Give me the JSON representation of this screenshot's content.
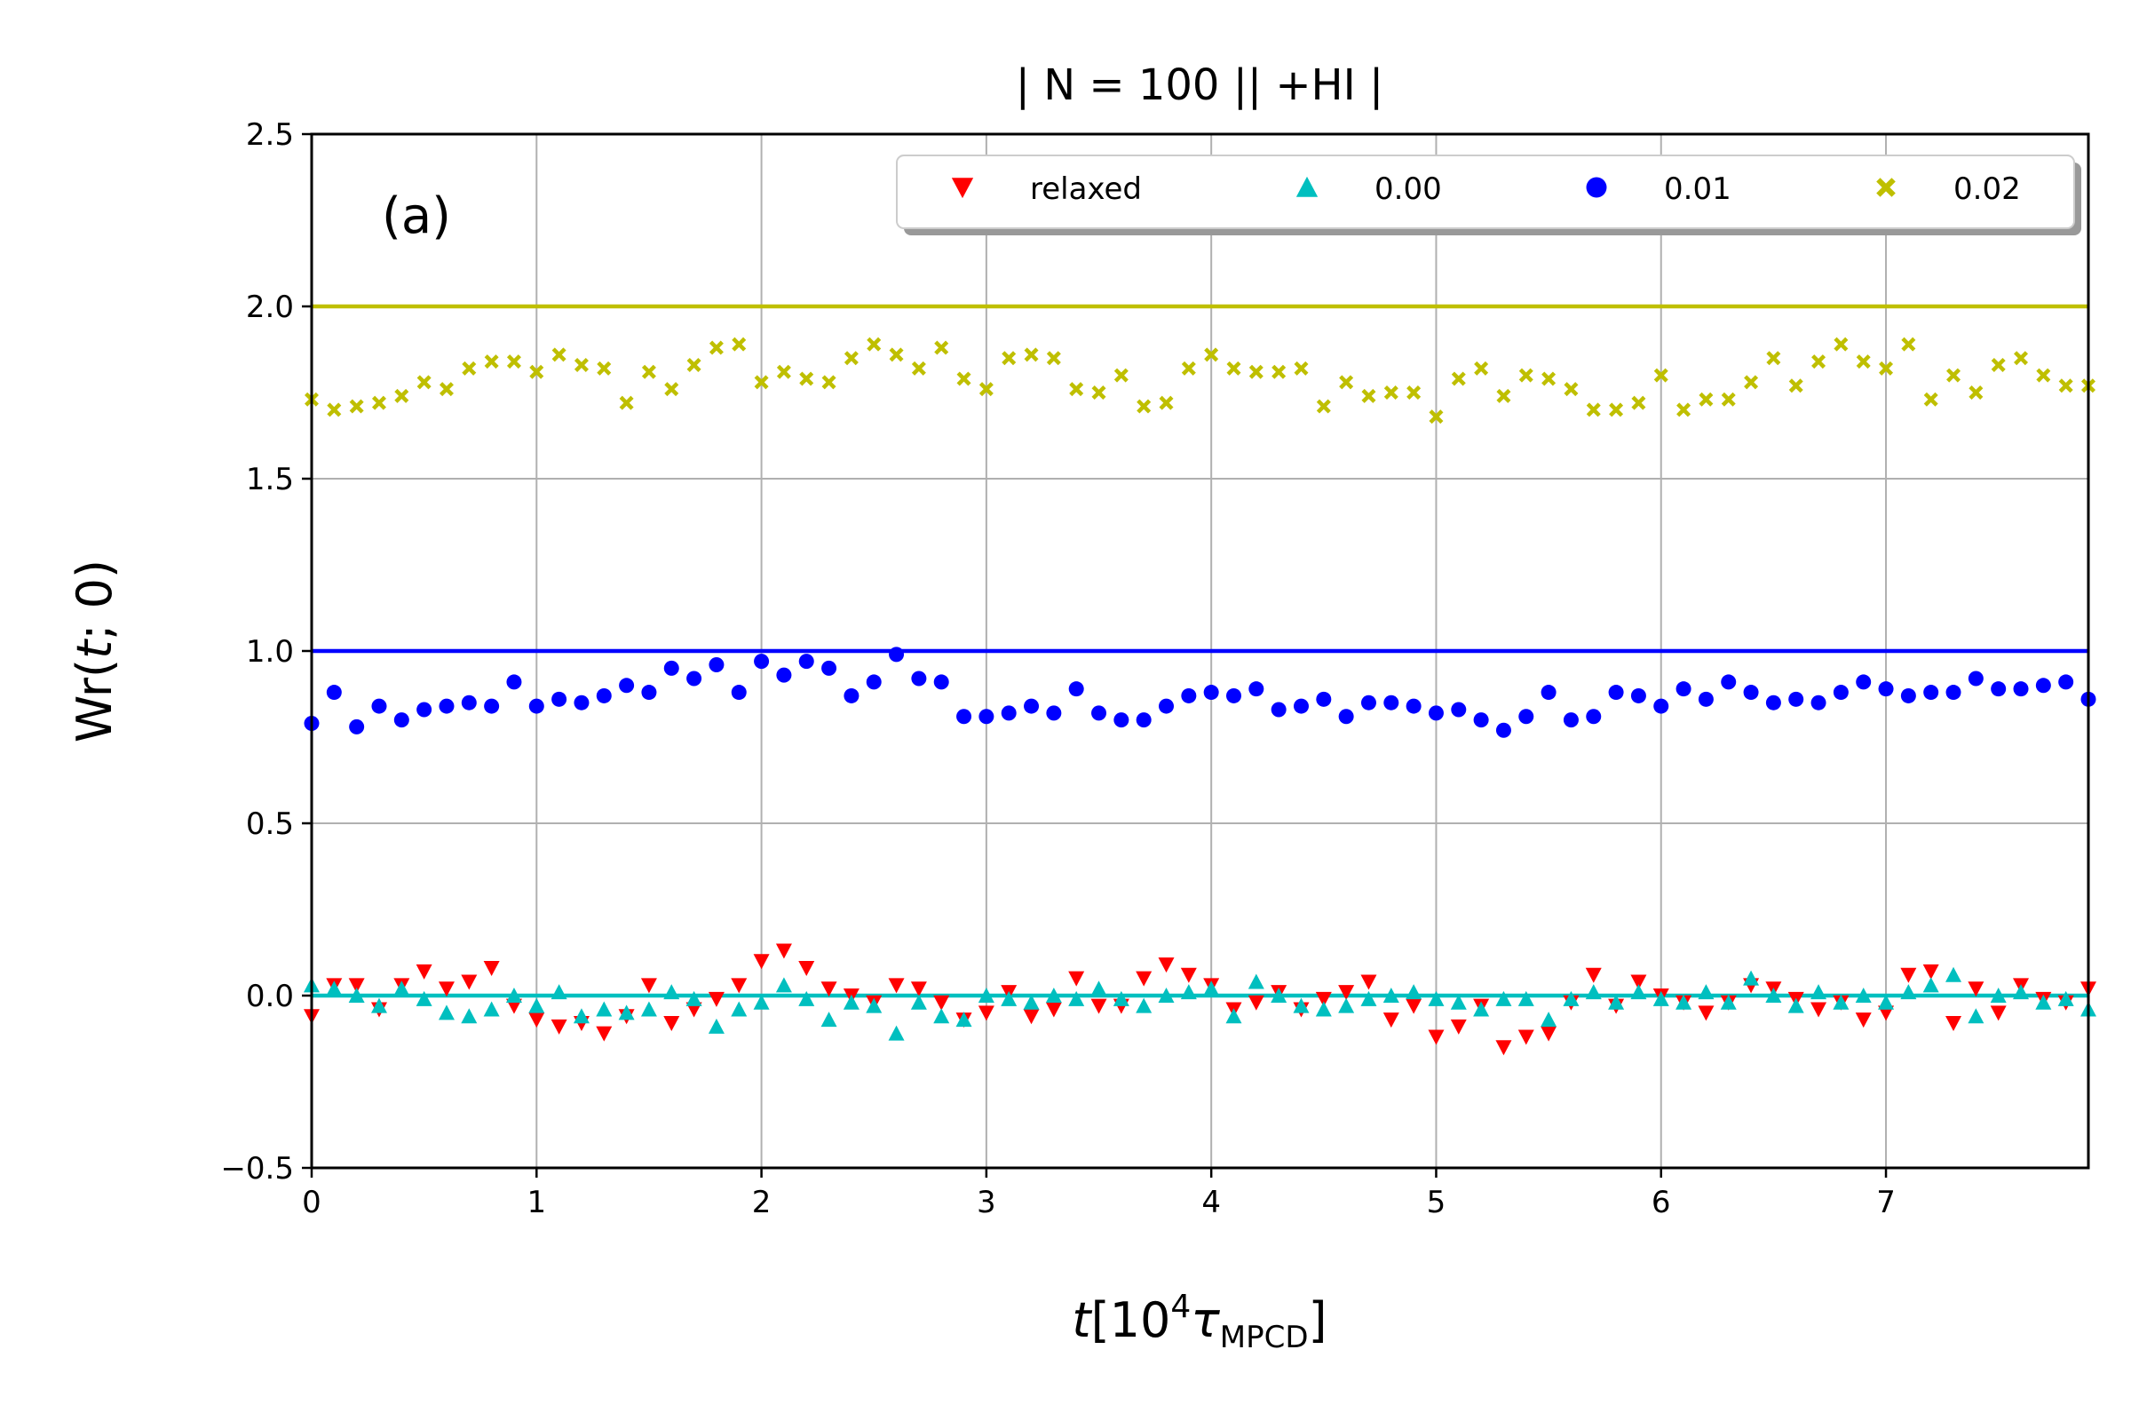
{
  "chart_data": {
    "type": "scatter",
    "title": "| N = 100 || +HI |",
    "panel_label": "(a)",
    "xlabel_var": "t",
    "xlabel_rest": "[10",
    "xlabel_exp": "4",
    "xlabel_tau": "τ",
    "xlabel_sub": "MPCD",
    "xlabel_close": "]",
    "ylabel_main": "Wr(",
    "ylabel_var": "t",
    "ylabel_rest": "; 0)",
    "xlim": [
      0,
      7.9
    ],
    "ylim": [
      -0.5,
      2.5
    ],
    "grid": true,
    "legend_position": "top-right",
    "xticks": [
      0,
      1,
      2,
      3,
      4,
      5,
      6,
      7
    ],
    "xtick_labels": [
      "0",
      "1",
      "2",
      "3",
      "4",
      "5",
      "6",
      "7"
    ],
    "yticks": [
      -0.5,
      0.0,
      0.5,
      1.0,
      1.5,
      2.0,
      2.5
    ],
    "ytick_labels": [
      "−0.5",
      "0.0",
      "0.5",
      "1.0",
      "1.5",
      "2.0",
      "2.5"
    ],
    "x": [
      0,
      0.1,
      0.2,
      0.3,
      0.4,
      0.5,
      0.6,
      0.7,
      0.8,
      0.9,
      1.0,
      1.1,
      1.2,
      1.3,
      1.4,
      1.5,
      1.6,
      1.7,
      1.8,
      1.9,
      2.0,
      2.1,
      2.2,
      2.3,
      2.4,
      2.5,
      2.6,
      2.7,
      2.8,
      2.9,
      3.0,
      3.1,
      3.2,
      3.3,
      3.4,
      3.5,
      3.6,
      3.7,
      3.8,
      3.9,
      4.0,
      4.1,
      4.2,
      4.3,
      4.4,
      4.5,
      4.6,
      4.7,
      4.8,
      4.9,
      5.0,
      5.1,
      5.2,
      5.3,
      5.4,
      5.5,
      5.6,
      5.7,
      5.8,
      5.9,
      6.0,
      6.1,
      6.2,
      6.3,
      6.4,
      6.5,
      6.6,
      6.7,
      6.8,
      6.9,
      7.0,
      7.1,
      7.2,
      7.3,
      7.4,
      7.5,
      7.6,
      7.7,
      7.8,
      7.9
    ],
    "series": [
      {
        "name": "relaxed",
        "marker": "triangle-down",
        "color": "#ff0000",
        "values": [
          -0.06,
          0.03,
          0.03,
          -0.04,
          0.03,
          0.07,
          0.02,
          0.04,
          0.08,
          -0.03,
          -0.07,
          -0.09,
          -0.08,
          -0.11,
          -0.06,
          0.03,
          -0.08,
          -0.04,
          -0.01,
          0.03,
          0.1,
          0.13,
          0.08,
          0.02,
          0.0,
          -0.02,
          0.03,
          0.02,
          -0.02,
          -0.07,
          -0.05,
          0.01,
          -0.06,
          -0.04,
          0.05,
          -0.03,
          -0.03,
          0.05,
          0.09,
          0.06,
          0.03,
          -0.04,
          -0.02,
          0.01,
          -0.04,
          -0.01,
          0.01,
          0.04,
          -0.07,
          -0.03,
          -0.12,
          -0.09,
          -0.03,
          -0.15,
          -0.12,
          -0.11,
          -0.02,
          0.06,
          -0.03,
          0.04,
          0.0,
          -0.02,
          -0.05,
          -0.02,
          0.03,
          0.02,
          -0.01,
          -0.04,
          -0.02,
          -0.07,
          -0.05,
          0.06,
          0.07,
          -0.08,
          0.02,
          -0.05,
          0.03,
          -0.01,
          -0.02,
          0.02
        ]
      },
      {
        "name": "0.00",
        "marker": "triangle-up",
        "color": "#00bfbf",
        "values": [
          0.03,
          0.02,
          0.0,
          -0.03,
          0.02,
          -0.01,
          -0.05,
          -0.06,
          -0.04,
          0.0,
          -0.03,
          0.01,
          -0.06,
          -0.04,
          -0.05,
          -0.04,
          0.01,
          -0.01,
          -0.09,
          -0.04,
          -0.02,
          0.03,
          -0.01,
          -0.07,
          -0.02,
          -0.03,
          -0.11,
          -0.02,
          -0.06,
          -0.07,
          0.0,
          -0.01,
          -0.02,
          0.0,
          -0.01,
          0.02,
          -0.01,
          -0.03,
          0.0,
          0.01,
          0.02,
          -0.06,
          0.04,
          0.0,
          -0.03,
          -0.04,
          -0.03,
          -0.01,
          0.0,
          0.01,
          -0.01,
          -0.02,
          -0.04,
          -0.01,
          -0.01,
          -0.07,
          -0.01,
          0.01,
          -0.02,
          0.01,
          -0.01,
          -0.02,
          0.01,
          -0.02,
          0.05,
          0.0,
          -0.03,
          0.01,
          -0.02,
          0.0,
          -0.02,
          0.01,
          0.03,
          0.06,
          -0.06,
          0.0,
          0.01,
          -0.02,
          -0.01,
          -0.04
        ]
      },
      {
        "name": "0.01",
        "marker": "circle",
        "color": "#0000ff",
        "values": [
          0.79,
          0.88,
          0.78,
          0.84,
          0.8,
          0.83,
          0.84,
          0.85,
          0.84,
          0.91,
          0.84,
          0.86,
          0.85,
          0.87,
          0.9,
          0.88,
          0.95,
          0.92,
          0.96,
          0.88,
          0.97,
          0.93,
          0.97,
          0.95,
          0.87,
          0.91,
          0.99,
          0.92,
          0.91,
          0.81,
          0.81,
          0.82,
          0.84,
          0.82,
          0.89,
          0.82,
          0.8,
          0.8,
          0.84,
          0.87,
          0.88,
          0.87,
          0.89,
          0.83,
          0.84,
          0.86,
          0.81,
          0.85,
          0.85,
          0.84,
          0.82,
          0.83,
          0.8,
          0.77,
          0.81,
          0.88,
          0.8,
          0.81,
          0.88,
          0.87,
          0.84,
          0.89,
          0.86,
          0.91,
          0.88,
          0.85,
          0.86,
          0.85,
          0.88,
          0.91,
          0.89,
          0.87,
          0.88,
          0.88,
          0.92,
          0.89,
          0.89,
          0.9,
          0.91,
          0.86
        ]
      },
      {
        "name": "0.02",
        "marker": "x-filled",
        "color": "#bfbf00",
        "values": [
          1.73,
          1.7,
          1.71,
          1.72,
          1.74,
          1.78,
          1.76,
          1.82,
          1.84,
          1.84,
          1.81,
          1.86,
          1.83,
          1.82,
          1.72,
          1.81,
          1.76,
          1.83,
          1.88,
          1.89,
          1.78,
          1.81,
          1.79,
          1.78,
          1.85,
          1.89,
          1.86,
          1.82,
          1.88,
          1.79,
          1.76,
          1.85,
          1.86,
          1.85,
          1.76,
          1.75,
          1.8,
          1.71,
          1.72,
          1.82,
          1.86,
          1.82,
          1.81,
          1.81,
          1.82,
          1.71,
          1.78,
          1.74,
          1.75,
          1.75,
          1.68,
          1.79,
          1.82,
          1.74,
          1.8,
          1.79,
          1.76,
          1.7,
          1.7,
          1.72,
          1.8,
          1.7,
          1.73,
          1.73,
          1.78,
          1.85,
          1.77,
          1.84,
          1.89,
          1.84,
          1.82,
          1.89,
          1.73,
          1.8,
          1.75,
          1.83,
          1.85,
          1.8,
          1.77,
          1.77
        ]
      }
    ],
    "reference_lines": [
      {
        "name": "0.02-line",
        "color": "#bfbf00",
        "values": [
          2.0,
          2.0,
          2.0,
          2.0,
          2.0,
          2.0,
          2.0,
          2.0,
          2.0,
          2.0,
          2.0,
          2.0,
          2.0,
          2.0,
          2.0,
          2.0,
          2.0,
          2.0,
          2.0,
          2.0,
          2.0,
          2.0,
          2.0,
          2.0,
          2.0,
          2.0,
          2.0,
          2.0,
          2.0,
          2.0,
          2.0,
          2.0,
          2.0,
          2.0,
          2.0,
          2.0,
          2.0,
          2.0,
          2.0,
          2.0,
          2.0,
          2.0,
          2.0,
          2.0,
          2.0,
          2.0,
          2.0,
          2.0,
          2.0,
          2.0,
          2.0,
          2.0,
          2.0,
          2.0,
          2.0,
          2.0,
          2.0,
          2.0,
          2.0,
          2.0,
          2.0,
          2.0,
          2.0,
          2.0,
          2.0,
          2.0,
          2.0,
          2.0,
          2.0,
          2.0,
          2.0,
          2.0,
          2.0,
          2.0,
          2.0,
          2.0,
          2.0,
          2.0,
          2.0,
          2.0
        ]
      },
      {
        "name": "0.01-line",
        "color": "#0000ff",
        "values": [
          1.0,
          1.0,
          1.0,
          1.0,
          1.0,
          1.0,
          1.0,
          1.0,
          1.0,
          1.0,
          1.0,
          1.0,
          1.0,
          1.0,
          1.0,
          1.0,
          1.0,
          1.0,
          1.0,
          1.0,
          1.0,
          1.0,
          1.0,
          1.0,
          1.0,
          1.0,
          1.0,
          1.0,
          1.0,
          1.0,
          1.0,
          1.0,
          1.0,
          1.0,
          1.0,
          1.0,
          1.0,
          1.0,
          1.0,
          1.0,
          1.0,
          1.0,
          1.0,
          1.0,
          1.0,
          1.0,
          1.0,
          1.0,
          1.0,
          1.0,
          1.0,
          1.0,
          1.0,
          1.0,
          1.0,
          1.0,
          1.0,
          1.0,
          1.0,
          1.0,
          1.0,
          1.0,
          1.0,
          1.0,
          1.0,
          1.0,
          1.0,
          1.0,
          1.0,
          1.0,
          1.0,
          1.0,
          1.0,
          1.0,
          1.0,
          1.0,
          1.0,
          1.0,
          1.0,
          1.0
        ]
      },
      {
        "name": "0.00-line",
        "color": "#00bfbf",
        "values": [
          0.0,
          0.0,
          0.0,
          0.0,
          0.0,
          0.0,
          0.0,
          0.0,
          0.0,
          0.0,
          0.0,
          0.0,
          0.0,
          0.0,
          0.0,
          0.0,
          0.0,
          0.0,
          0.0,
          0.0,
          0.0,
          0.0,
          0.0,
          0.0,
          0.0,
          0.0,
          0.0,
          0.0,
          0.0,
          0.0,
          0.0,
          0.0,
          0.0,
          0.0,
          0.0,
          0.0,
          0.0,
          0.0,
          0.0,
          0.0,
          0.0,
          0.0,
          0.0,
          0.0,
          0.0,
          0.0,
          0.0,
          0.0,
          0.0,
          0.0,
          0.0,
          0.0,
          0.0,
          0.0,
          0.0,
          0.0,
          0.0,
          0.0,
          0.0,
          0.0,
          0.0,
          0.0,
          0.0,
          0.0,
          0.0,
          0.0,
          0.0,
          0.0,
          0.0,
          0.0,
          0.0,
          0.0,
          0.0,
          0.0,
          0.0,
          0.0,
          0.0,
          0.0,
          0.0,
          0.0
        ]
      }
    ],
    "legend": [
      "relaxed",
      "0.00",
      "0.01",
      "0.02"
    ]
  }
}
